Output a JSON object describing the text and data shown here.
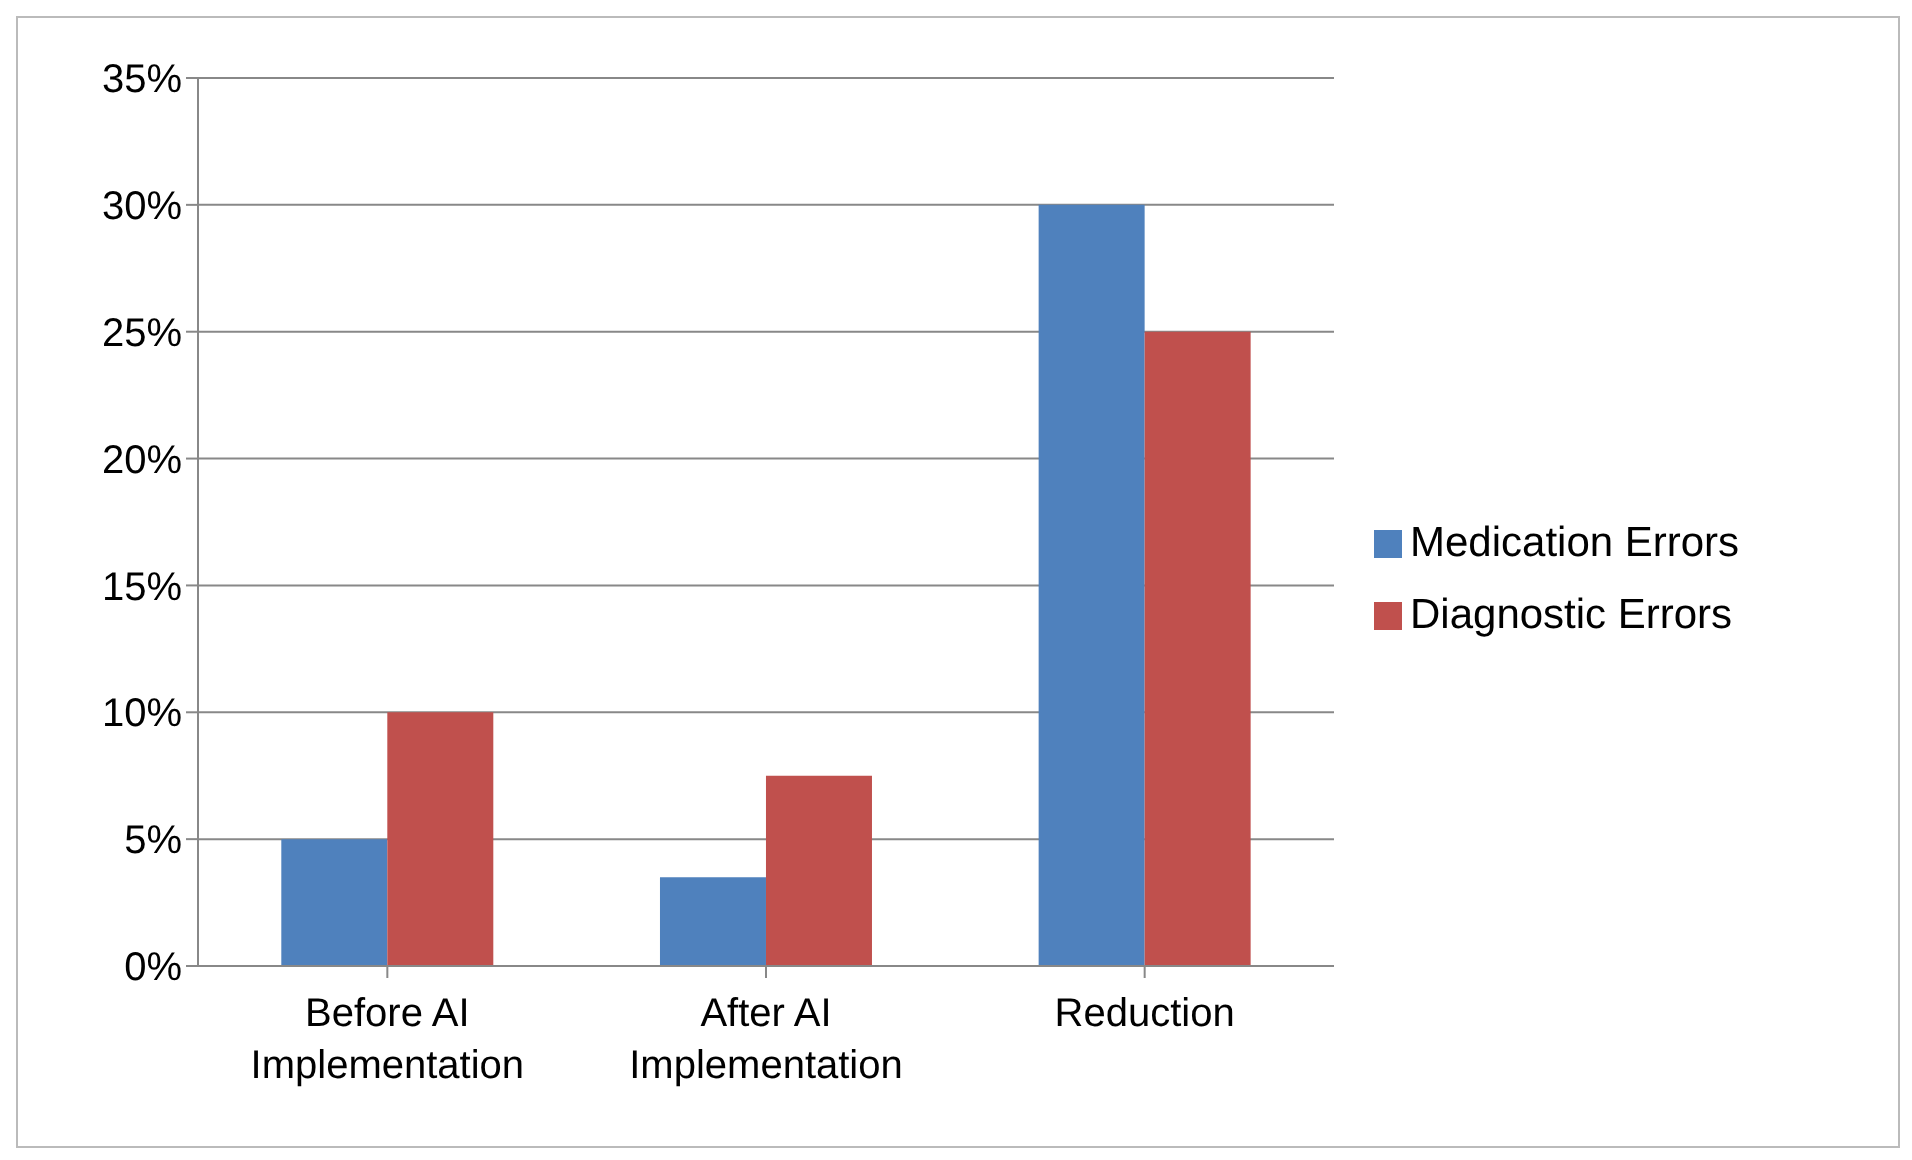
{
  "chart_data": {
    "type": "bar",
    "categories": [
      "Before AI Implementation",
      "After AI Implementation",
      "Reduction"
    ],
    "series": [
      {
        "name": "Medication Errors",
        "color": "#4f81bd",
        "values": [
          5,
          3.5,
          30
        ]
      },
      {
        "name": "Diagnostic Errors",
        "color": "#c0504d",
        "values": [
          10,
          7.5,
          25
        ]
      }
    ],
    "ylim": [
      0,
      35
    ],
    "yticks": [
      {
        "value": 0,
        "label": "0%"
      },
      {
        "value": 5,
        "label": "5%"
      },
      {
        "value": 10,
        "label": "10%"
      },
      {
        "value": 15,
        "label": "15%"
      },
      {
        "value": 20,
        "label": "20%"
      },
      {
        "value": 25,
        "label": "25%"
      },
      {
        "value": 30,
        "label": "30%"
      },
      {
        "value": 35,
        "label": "35%"
      }
    ],
    "grid": "y",
    "legend": "right"
  }
}
